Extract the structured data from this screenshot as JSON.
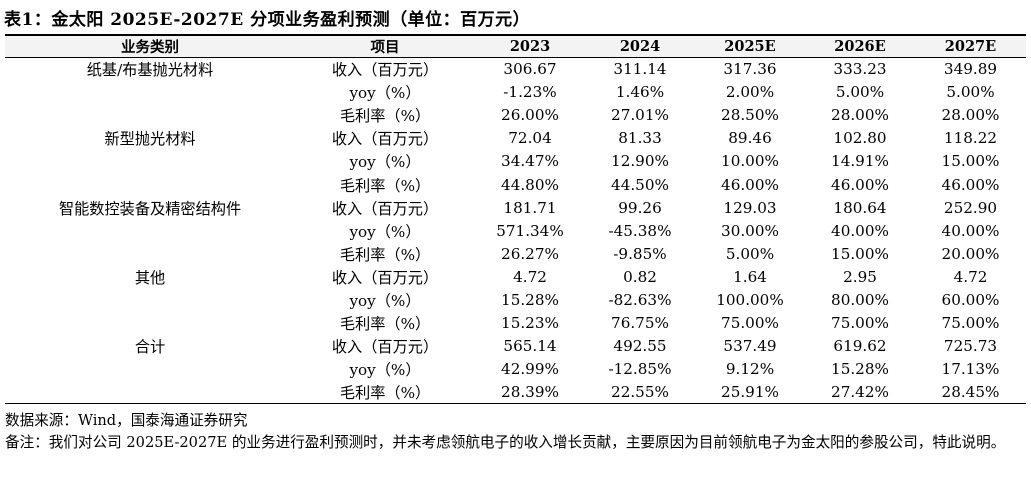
{
  "title": "表1：金太阳 2025E-2027E 分项业务盈利预测（单位：百万元）",
  "table": {
    "headers": [
      "业务类别",
      "项目",
      "2023",
      "2024",
      "2025E",
      "2026E",
      "2027E"
    ],
    "rows": [
      {
        "category": "纸基/布基抛光材料",
        "item": "收入（百万元）",
        "values": [
          "306.67",
          "311.14",
          "317.36",
          "333.23",
          "349.89"
        ]
      },
      {
        "category": "",
        "item": "yoy（%）",
        "values": [
          "-1.23%",
          "1.46%",
          "2.00%",
          "5.00%",
          "5.00%"
        ]
      },
      {
        "category": "",
        "item": "毛利率（%）",
        "values": [
          "26.00%",
          "27.01%",
          "28.50%",
          "28.00%",
          "28.00%"
        ]
      },
      {
        "category": "新型抛光材料",
        "item": "收入（百万元）",
        "values": [
          "72.04",
          "81.33",
          "89.46",
          "102.80",
          "118.22"
        ]
      },
      {
        "category": "",
        "item": "yoy（%）",
        "values": [
          "34.47%",
          "12.90%",
          "10.00%",
          "14.91%",
          "15.00%"
        ]
      },
      {
        "category": "",
        "item": "毛利率（%）",
        "values": [
          "44.80%",
          "44.50%",
          "46.00%",
          "46.00%",
          "46.00%"
        ]
      },
      {
        "category": "智能数控装备及精密结构件",
        "item": "收入（百万元）",
        "values": [
          "181.71",
          "99.26",
          "129.03",
          "180.64",
          "252.90"
        ]
      },
      {
        "category": "",
        "item": "yoy（%）",
        "values": [
          "571.34%",
          "-45.38%",
          "30.00%",
          "40.00%",
          "40.00%"
        ]
      },
      {
        "category": "",
        "item": "毛利率（%）",
        "values": [
          "26.27%",
          "-9.85%",
          "5.00%",
          "15.00%",
          "20.00%"
        ]
      },
      {
        "category": "其他",
        "item": "收入（百万元）",
        "values": [
          "4.72",
          "0.82",
          "1.64",
          "2.95",
          "4.72"
        ]
      },
      {
        "category": "",
        "item": "yoy（%）",
        "values": [
          "15.28%",
          "-82.63%",
          "100.00%",
          "80.00%",
          "60.00%"
        ]
      },
      {
        "category": "",
        "item": "毛利率（%）",
        "values": [
          "15.23%",
          "76.75%",
          "75.00%",
          "75.00%",
          "75.00%"
        ]
      },
      {
        "category": "合计",
        "item": "收入（百万元）",
        "values": [
          "565.14",
          "492.55",
          "537.49",
          "619.62",
          "725.73"
        ]
      },
      {
        "category": "",
        "item": "yoy（%）",
        "values": [
          "42.99%",
          "-12.85%",
          "9.12%",
          "15.28%",
          "17.13%"
        ]
      },
      {
        "category": "",
        "item": "毛利率（%）",
        "values": [
          "28.39%",
          "22.55%",
          "25.91%",
          "27.42%",
          "28.45%"
        ]
      }
    ]
  },
  "source": "数据来源：Wind，国泰海通证券研究",
  "note": "备注：我们对公司 2025E-2027E 的业务进行盈利预测时，并未考虑领航电子的收入增长贡献，主要原因为目前领航电子为金太阳的参股公司，特此说明。"
}
